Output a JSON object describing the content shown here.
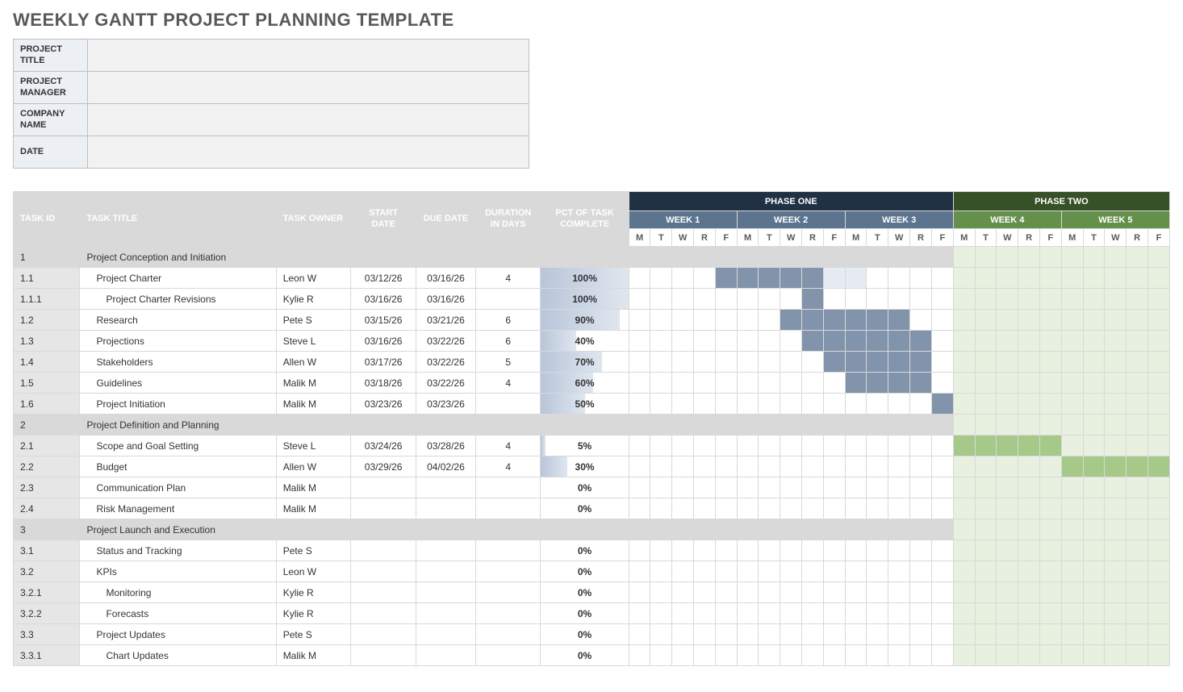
{
  "title": "WEEKLY GANTT PROJECT PLANNING TEMPLATE",
  "meta": {
    "rows": [
      {
        "label": "PROJECT TITLE",
        "value": ""
      },
      {
        "label": "PROJECT MANAGER",
        "value": ""
      },
      {
        "label": "COMPANY NAME",
        "value": ""
      },
      {
        "label": "DATE",
        "value": ""
      }
    ]
  },
  "columns": {
    "task_id": "TASK ID",
    "task_title": "TASK TITLE",
    "task_owner": "TASK OWNER",
    "start": "START DATE",
    "due": "DUE DATE",
    "duration": "DURATION IN DAYS",
    "pct": "PCT OF TASK COMPLETE"
  },
  "phases": [
    {
      "label": "PHASE ONE",
      "class": "phase1-bg",
      "weeks": 3
    },
    {
      "label": "PHASE TWO",
      "class": "phase2-bg",
      "weeks": 2
    }
  ],
  "weeks": [
    {
      "label": "WEEK 1",
      "class": "week1-bg"
    },
    {
      "label": "WEEK 2",
      "class": "week2-bg"
    },
    {
      "label": "WEEK 3",
      "class": "week3-bg"
    },
    {
      "label": "WEEK 4",
      "class": "week4-bg"
    },
    {
      "label": "WEEK 5",
      "class": "week5-bg"
    }
  ],
  "days": [
    "M",
    "T",
    "W",
    "R",
    "F"
  ],
  "colors": {
    "phase1": "#203144",
    "phase2": "#365028",
    "week_blue": "#5c748e",
    "week_green": "#64904c",
    "bar_blue": "#8293ac",
    "bar_green": "#a6c98a",
    "phase2_fill": "#e8f0e0",
    "hdr_grey": "#d9d9d9",
    "border": "#d9d9d9",
    "pct_grad_from": "#b8c6d9",
    "pct_grad_to": "#dfe6ef"
  },
  "rows": [
    {
      "section": true,
      "id": "1",
      "title": "Project Conception and Initiation",
      "indent": 0
    },
    {
      "id": "1.1",
      "title": "Project Charter",
      "indent": 1,
      "owner": "Leon W",
      "start": "03/12/26",
      "due": "03/16/26",
      "dur": "4",
      "pct": 100,
      "bar": {
        "start": 5,
        "len": 5,
        "color": "blue",
        "lightTail": 2
      }
    },
    {
      "id": "1.1.1",
      "title": "Project Charter Revisions",
      "indent": 2,
      "owner": "Kylie R",
      "start": "03/16/26",
      "due": "03/16/26",
      "dur": "",
      "pct": 100,
      "bar": {
        "start": 9,
        "len": 1,
        "color": "blue"
      }
    },
    {
      "id": "1.2",
      "title": "Research",
      "indent": 1,
      "owner": "Pete S",
      "start": "03/15/26",
      "due": "03/21/26",
      "dur": "6",
      "pct": 90,
      "bar": {
        "start": 8,
        "len": 6,
        "color": "blue"
      }
    },
    {
      "id": "1.3",
      "title": "Projections",
      "indent": 1,
      "owner": "Steve L",
      "start": "03/16/26",
      "due": "03/22/26",
      "dur": "6",
      "pct": 40,
      "bar": {
        "start": 9,
        "len": 6,
        "color": "blue"
      }
    },
    {
      "id": "1.4",
      "title": "Stakeholders",
      "indent": 1,
      "owner": "Allen W",
      "start": "03/17/26",
      "due": "03/22/26",
      "dur": "5",
      "pct": 70,
      "bar": {
        "start": 10,
        "len": 5,
        "color": "blue"
      }
    },
    {
      "id": "1.5",
      "title": "Guidelines",
      "indent": 1,
      "owner": "Malik M",
      "start": "03/18/26",
      "due": "03/22/26",
      "dur": "4",
      "pct": 60,
      "bar": {
        "start": 11,
        "len": 4,
        "color": "blue"
      }
    },
    {
      "id": "1.6",
      "title": "Project Initiation",
      "indent": 1,
      "owner": "Malik M",
      "start": "03/23/26",
      "due": "03/23/26",
      "dur": "",
      "pct": 50,
      "bar": {
        "start": 15,
        "len": 1,
        "color": "blue"
      }
    },
    {
      "section": true,
      "id": "2",
      "title": "Project Definition and Planning",
      "indent": 0
    },
    {
      "id": "2.1",
      "title": "Scope and Goal Setting",
      "indent": 1,
      "owner": "Steve L",
      "start": "03/24/26",
      "due": "03/28/26",
      "dur": "4",
      "pct": 5,
      "bar": {
        "start": 16,
        "len": 5,
        "color": "green"
      }
    },
    {
      "id": "2.2",
      "title": "Budget",
      "indent": 1,
      "owner": "Allen W",
      "start": "03/29/26",
      "due": "04/02/26",
      "dur": "4",
      "pct": 30,
      "bar": {
        "start": 21,
        "len": 5,
        "color": "green"
      }
    },
    {
      "id": "2.3",
      "title": "Communication Plan",
      "indent": 1,
      "owner": "Malik M",
      "start": "",
      "due": "",
      "dur": "",
      "pct": 0
    },
    {
      "id": "2.4",
      "title": "Risk Management",
      "indent": 1,
      "owner": "Malik M",
      "start": "",
      "due": "",
      "dur": "",
      "pct": 0
    },
    {
      "section": true,
      "id": "3",
      "title": "Project Launch and Execution",
      "indent": 0
    },
    {
      "id": "3.1",
      "title": "Status and Tracking",
      "indent": 1,
      "owner": "Pete S",
      "start": "",
      "due": "",
      "dur": "",
      "pct": 0
    },
    {
      "id": "3.2",
      "title": "KPIs",
      "indent": 1,
      "owner": "Leon W",
      "start": "",
      "due": "",
      "dur": "",
      "pct": 0
    },
    {
      "id": "3.2.1",
      "title": "Monitoring",
      "indent": 2,
      "owner": "Kylie R",
      "start": "",
      "due": "",
      "dur": "",
      "pct": 0
    },
    {
      "id": "3.2.2",
      "title": "Forecasts",
      "indent": 2,
      "owner": "Kylie R",
      "start": "",
      "due": "",
      "dur": "",
      "pct": 0
    },
    {
      "id": "3.3",
      "title": "Project Updates",
      "indent": 1,
      "owner": "Pete S",
      "start": "",
      "due": "",
      "dur": "",
      "pct": 0
    },
    {
      "id": "3.3.1",
      "title": "Chart Updates",
      "indent": 2,
      "owner": "Malik M",
      "start": "",
      "due": "",
      "dur": "",
      "pct": 0
    }
  ]
}
